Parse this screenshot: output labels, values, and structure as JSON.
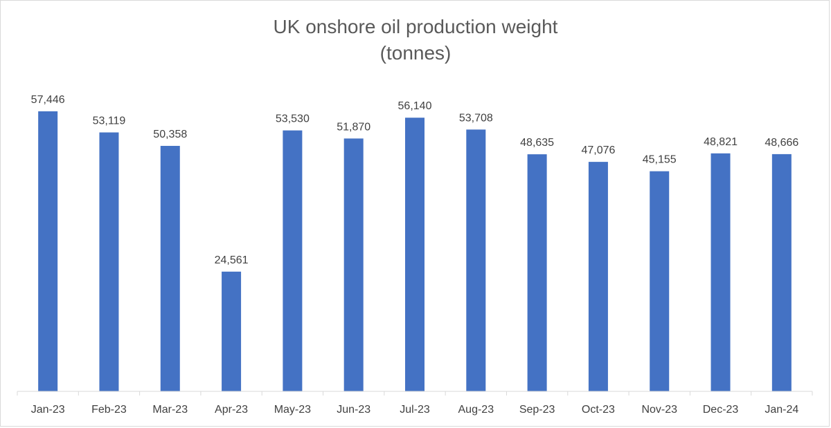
{
  "chart_data": {
    "type": "bar",
    "title": "UK onshore oil production weight",
    "subtitle": "(tonnes)",
    "xlabel": "",
    "ylabel": "",
    "categories": [
      "Jan-23",
      "Feb-23",
      "Mar-23",
      "Apr-23",
      "May-23",
      "Jun-23",
      "Jul-23",
      "Aug-23",
      "Sep-23",
      "Oct-23",
      "Nov-23",
      "Dec-23",
      "Jan-24"
    ],
    "values": [
      57446,
      53119,
      50358,
      24561,
      53530,
      51870,
      56140,
      53708,
      48635,
      47076,
      45155,
      48821,
      48666
    ],
    "value_labels": [
      "57,446",
      "53,119",
      "50,358",
      "24,561",
      "53,530",
      "51,870",
      "56,140",
      "53,708",
      "48,635",
      "47,076",
      "45,155",
      "48,821",
      "48,666"
    ],
    "ylim": [
      0,
      60000
    ],
    "grid": false,
    "legend": "none",
    "bar_color": "#4472c4"
  }
}
